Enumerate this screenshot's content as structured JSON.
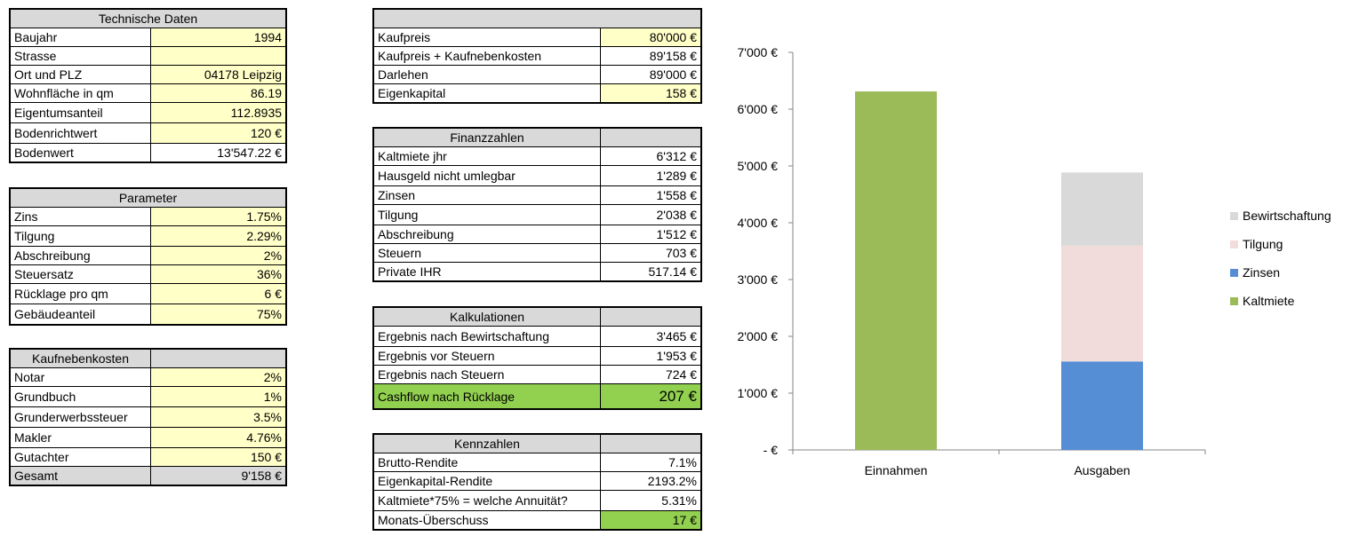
{
  "technische_daten": {
    "title": "Technische Daten",
    "rows": [
      {
        "label": "Baujahr",
        "value": "1994"
      },
      {
        "label": "Strasse",
        "value": ""
      },
      {
        "label": "Ort und PLZ",
        "value": "04178 Leipzig"
      },
      {
        "label": "Wohnfläche in qm",
        "value": "86.19"
      },
      {
        "label": "Eigentumsanteil",
        "value": "112.8935"
      },
      {
        "label": "Bodenrichtwert",
        "value": "120 €"
      },
      {
        "label": "Bodenwert",
        "value": "13'547.22 €"
      }
    ]
  },
  "parameter": {
    "title": "Parameter",
    "rows": [
      {
        "label": "Zins",
        "value": "1.75%"
      },
      {
        "label": "Tilgung",
        "value": "2.29%"
      },
      {
        "label": "Abschreibung",
        "value": "2%"
      },
      {
        "label": "Steuersatz",
        "value": "36%"
      },
      {
        "label": "Rücklage pro qm",
        "value": "6 €"
      },
      {
        "label": "Gebäudeanteil",
        "value": "75%"
      }
    ]
  },
  "kaufnebenkosten": {
    "title": "Kaufnebenkosten",
    "rows": [
      {
        "label": "Notar",
        "value": "2%"
      },
      {
        "label": "Grundbuch",
        "value": "1%"
      },
      {
        "label": "Grunderwerbssteuer",
        "value": "3.5%"
      },
      {
        "label": "Makler",
        "value": "4.76%"
      },
      {
        "label": "Gutachter",
        "value": "150 €"
      }
    ],
    "total": {
      "label": "Gesamt",
      "value": "9'158 €"
    }
  },
  "kauf": {
    "rows": [
      {
        "label": "Kaufpreis",
        "value": "80'000 €"
      },
      {
        "label": "Kaufpreis + Kaufnebenkosten",
        "value": "89'158 €"
      },
      {
        "label": "Darlehen",
        "value": "89'000 €"
      },
      {
        "label": "Eigenkapital",
        "value": "158 €"
      }
    ]
  },
  "finanzzahlen": {
    "title": "Finanzzahlen",
    "rows": [
      {
        "label": "Kaltmiete jhr",
        "value": "6'312 €"
      },
      {
        "label": "Hausgeld nicht umlegbar",
        "value": "1'289 €"
      },
      {
        "label": "Zinsen",
        "value": "1'558 €"
      },
      {
        "label": "Tilgung",
        "value": "2'038 €"
      },
      {
        "label": "Abschreibung",
        "value": "1'512 €"
      },
      {
        "label": "Steuern",
        "value": "703 €"
      },
      {
        "label": "Private IHR",
        "value": "517.14 €"
      }
    ]
  },
  "kalkulationen": {
    "title": "Kalkulationen",
    "rows": [
      {
        "label": "Ergebnis nach Bewirtschaftung",
        "value": "3'465 €"
      },
      {
        "label": "Ergebnis vor Steuern",
        "value": "1'953 €"
      },
      {
        "label": "Ergebnis nach Steuern",
        "value": "724 €"
      },
      {
        "label": "Cashflow nach Rücklage",
        "value": "207 €"
      }
    ]
  },
  "kennzahlen": {
    "title": "Kennzahlen",
    "rows": [
      {
        "label": "Brutto-Rendite",
        "value": "7.1%"
      },
      {
        "label": "Eigenkapital-Rendite",
        "value": "2193.2%"
      },
      {
        "label": "Kaltmiete*75% = welche Annuität?",
        "value": "5.31%"
      },
      {
        "label": "Monats-Überschuss",
        "value": "17 €"
      }
    ]
  },
  "colors": {
    "header_gray": "#d9d9d9",
    "input_yellow": "#ffffc8",
    "highlight_green": "#92d050",
    "kaltmiete": "#9bbb59",
    "zinsen": "#558ed5",
    "tilgung": "#f2dcdb",
    "bewirtschaftung": "#d9d9d9"
  },
  "chart_data": {
    "type": "bar",
    "stacked": true,
    "categories": [
      "Einnahmen",
      "Ausgaben"
    ],
    "series": [
      {
        "name": "Kaltmiete",
        "values": [
          6312,
          0
        ],
        "color": "#9bbb59"
      },
      {
        "name": "Zinsen",
        "values": [
          0,
          1558
        ],
        "color": "#558ed5"
      },
      {
        "name": "Tilgung",
        "values": [
          0,
          2038
        ],
        "color": "#f2dcdb"
      },
      {
        "name": "Bewirtschaftung",
        "values": [
          0,
          1289
        ],
        "color": "#d9d9d9"
      }
    ],
    "ylim": [
      0,
      7000
    ],
    "yticks": [
      0,
      1000,
      2000,
      3000,
      4000,
      5000,
      6000,
      7000
    ],
    "ytick_labels": [
      "-  €",
      "1'000 €",
      "2'000 €",
      "3'000 €",
      "4'000 €",
      "5'000 €",
      "6'000 €",
      "7'000 €"
    ],
    "legend_order": [
      "Bewirtschaftung",
      "Tilgung",
      "Zinsen",
      "Kaltmiete"
    ],
    "legend_position": "right",
    "grid": false
  }
}
